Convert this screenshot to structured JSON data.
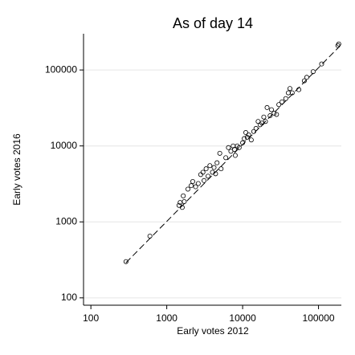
{
  "chart_data": {
    "type": "scatter",
    "title": "As of day 14",
    "x_label": "Early votes 2012",
    "y_label": "Early votes 2016",
    "log_x": true,
    "log_y": true,
    "grid": true,
    "marker_color": "#000000",
    "fit_color": "#000000",
    "xlim": [
      80,
      200000
    ],
    "ylim": [
      80,
      300000
    ],
    "xticks": [
      100,
      1000,
      10000,
      100000
    ],
    "yticks": [
      100,
      1000,
      10000,
      100000
    ],
    "x": [
      290,
      600,
      1450,
      1500,
      1600,
      1650,
      1700,
      1900,
      2100,
      2200,
      2400,
      2600,
      2800,
      3000,
      3100,
      3300,
      3500,
      3700,
      4000,
      4200,
      4400,
      4600,
      5000,
      5200,
      6000,
      6500,
      7000,
      7500,
      7800,
      8000,
      8500,
      9000,
      10000,
      10500,
      11000,
      11500,
      12000,
      13000,
      14000,
      15000,
      16000,
      17000,
      18000,
      19000,
      20000,
      21000,
      23000,
      24000,
      26000,
      28000,
      30000,
      33000,
      37000,
      40000,
      42000,
      45000,
      55000,
      65000,
      70000,
      85000,
      110000,
      180000,
      185000
    ],
    "y": [
      300,
      650,
      1650,
      1800,
      1550,
      2200,
      1850,
      2700,
      3000,
      3400,
      2900,
      3200,
      4200,
      4500,
      3500,
      5000,
      4000,
      5500,
      4500,
      5200,
      4300,
      6000,
      8000,
      5000,
      7000,
      9500,
      8500,
      10000,
      9000,
      7500,
      10000,
      9500,
      11000,
      12500,
      15000,
      13000,
      14000,
      12000,
      15500,
      17000,
      21000,
      19000,
      20000,
      24000,
      21000,
      32000,
      25000,
      30000,
      27000,
      26000,
      35000,
      38000,
      42000,
      50000,
      57000,
      50000,
      55000,
      72000,
      80000,
      95000,
      120000,
      210000,
      220000
    ],
    "fit": {
      "x": [
        290,
        190000
      ],
      "y": [
        290,
        205000
      ]
    }
  }
}
